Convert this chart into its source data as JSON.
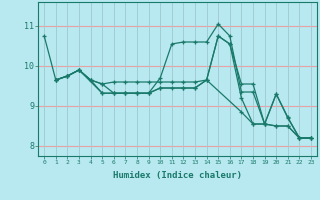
{
  "title": "",
  "xlabel": "Humidex (Indice chaleur)",
  "bg_color": "#b8e8f0",
  "line_color": "#1a7a6a",
  "grid_color_h": "#e8a0a0",
  "grid_color_v": "#a0c8d0",
  "xlim": [
    -0.5,
    23.5
  ],
  "ylim": [
    7.75,
    11.6
  ],
  "yticks": [
    8,
    9,
    10,
    11
  ],
  "xticks": [
    0,
    1,
    2,
    3,
    4,
    5,
    6,
    7,
    8,
    9,
    10,
    11,
    12,
    13,
    14,
    15,
    16,
    17,
    18,
    19,
    20,
    21,
    22,
    23
  ],
  "series": [
    {
      "x": [
        0,
        1,
        2,
        3,
        4,
        5,
        6,
        7,
        8,
        9,
        10,
        11,
        12,
        13,
        14,
        15,
        16,
        17,
        18,
        19,
        20,
        21,
        22,
        23
      ],
      "y": [
        10.75,
        9.65,
        9.75,
        9.9,
        9.65,
        9.55,
        9.32,
        9.32,
        9.32,
        9.32,
        9.7,
        10.55,
        10.6,
        10.6,
        10.6,
        11.05,
        10.75,
        9.35,
        9.35,
        8.55,
        9.3,
        8.72,
        8.2,
        8.2
      ]
    },
    {
      "x": [
        1,
        2,
        3,
        4,
        5,
        6,
        7,
        8,
        9,
        10,
        11,
        12,
        13,
        14,
        15,
        16,
        17,
        18,
        19,
        20,
        21,
        22,
        23
      ],
      "y": [
        9.65,
        9.75,
        9.9,
        9.65,
        9.55,
        9.6,
        9.6,
        9.6,
        9.6,
        9.6,
        9.6,
        9.6,
        9.6,
        9.65,
        10.75,
        10.55,
        9.55,
        9.55,
        8.55,
        9.3,
        8.7,
        8.2,
        8.2
      ]
    },
    {
      "x": [
        1,
        2,
        3,
        4,
        5,
        6,
        7,
        8,
        9,
        10,
        11,
        12,
        13,
        14,
        15,
        16,
        17,
        18,
        19,
        20,
        21,
        22,
        23
      ],
      "y": [
        9.65,
        9.75,
        9.9,
        9.65,
        9.32,
        9.32,
        9.32,
        9.32,
        9.32,
        9.45,
        9.45,
        9.45,
        9.45,
        9.65,
        10.75,
        10.55,
        9.2,
        8.55,
        8.55,
        8.5,
        8.5,
        8.2,
        8.2
      ]
    },
    {
      "x": [
        1,
        2,
        3,
        5,
        6,
        7,
        8,
        9,
        10,
        12,
        13,
        14,
        17,
        18,
        19,
        20,
        21,
        22,
        23
      ],
      "y": [
        9.65,
        9.75,
        9.9,
        9.32,
        9.32,
        9.32,
        9.32,
        9.32,
        9.45,
        9.45,
        9.45,
        9.65,
        8.85,
        8.55,
        8.55,
        8.5,
        8.5,
        8.2,
        8.2
      ]
    }
  ]
}
